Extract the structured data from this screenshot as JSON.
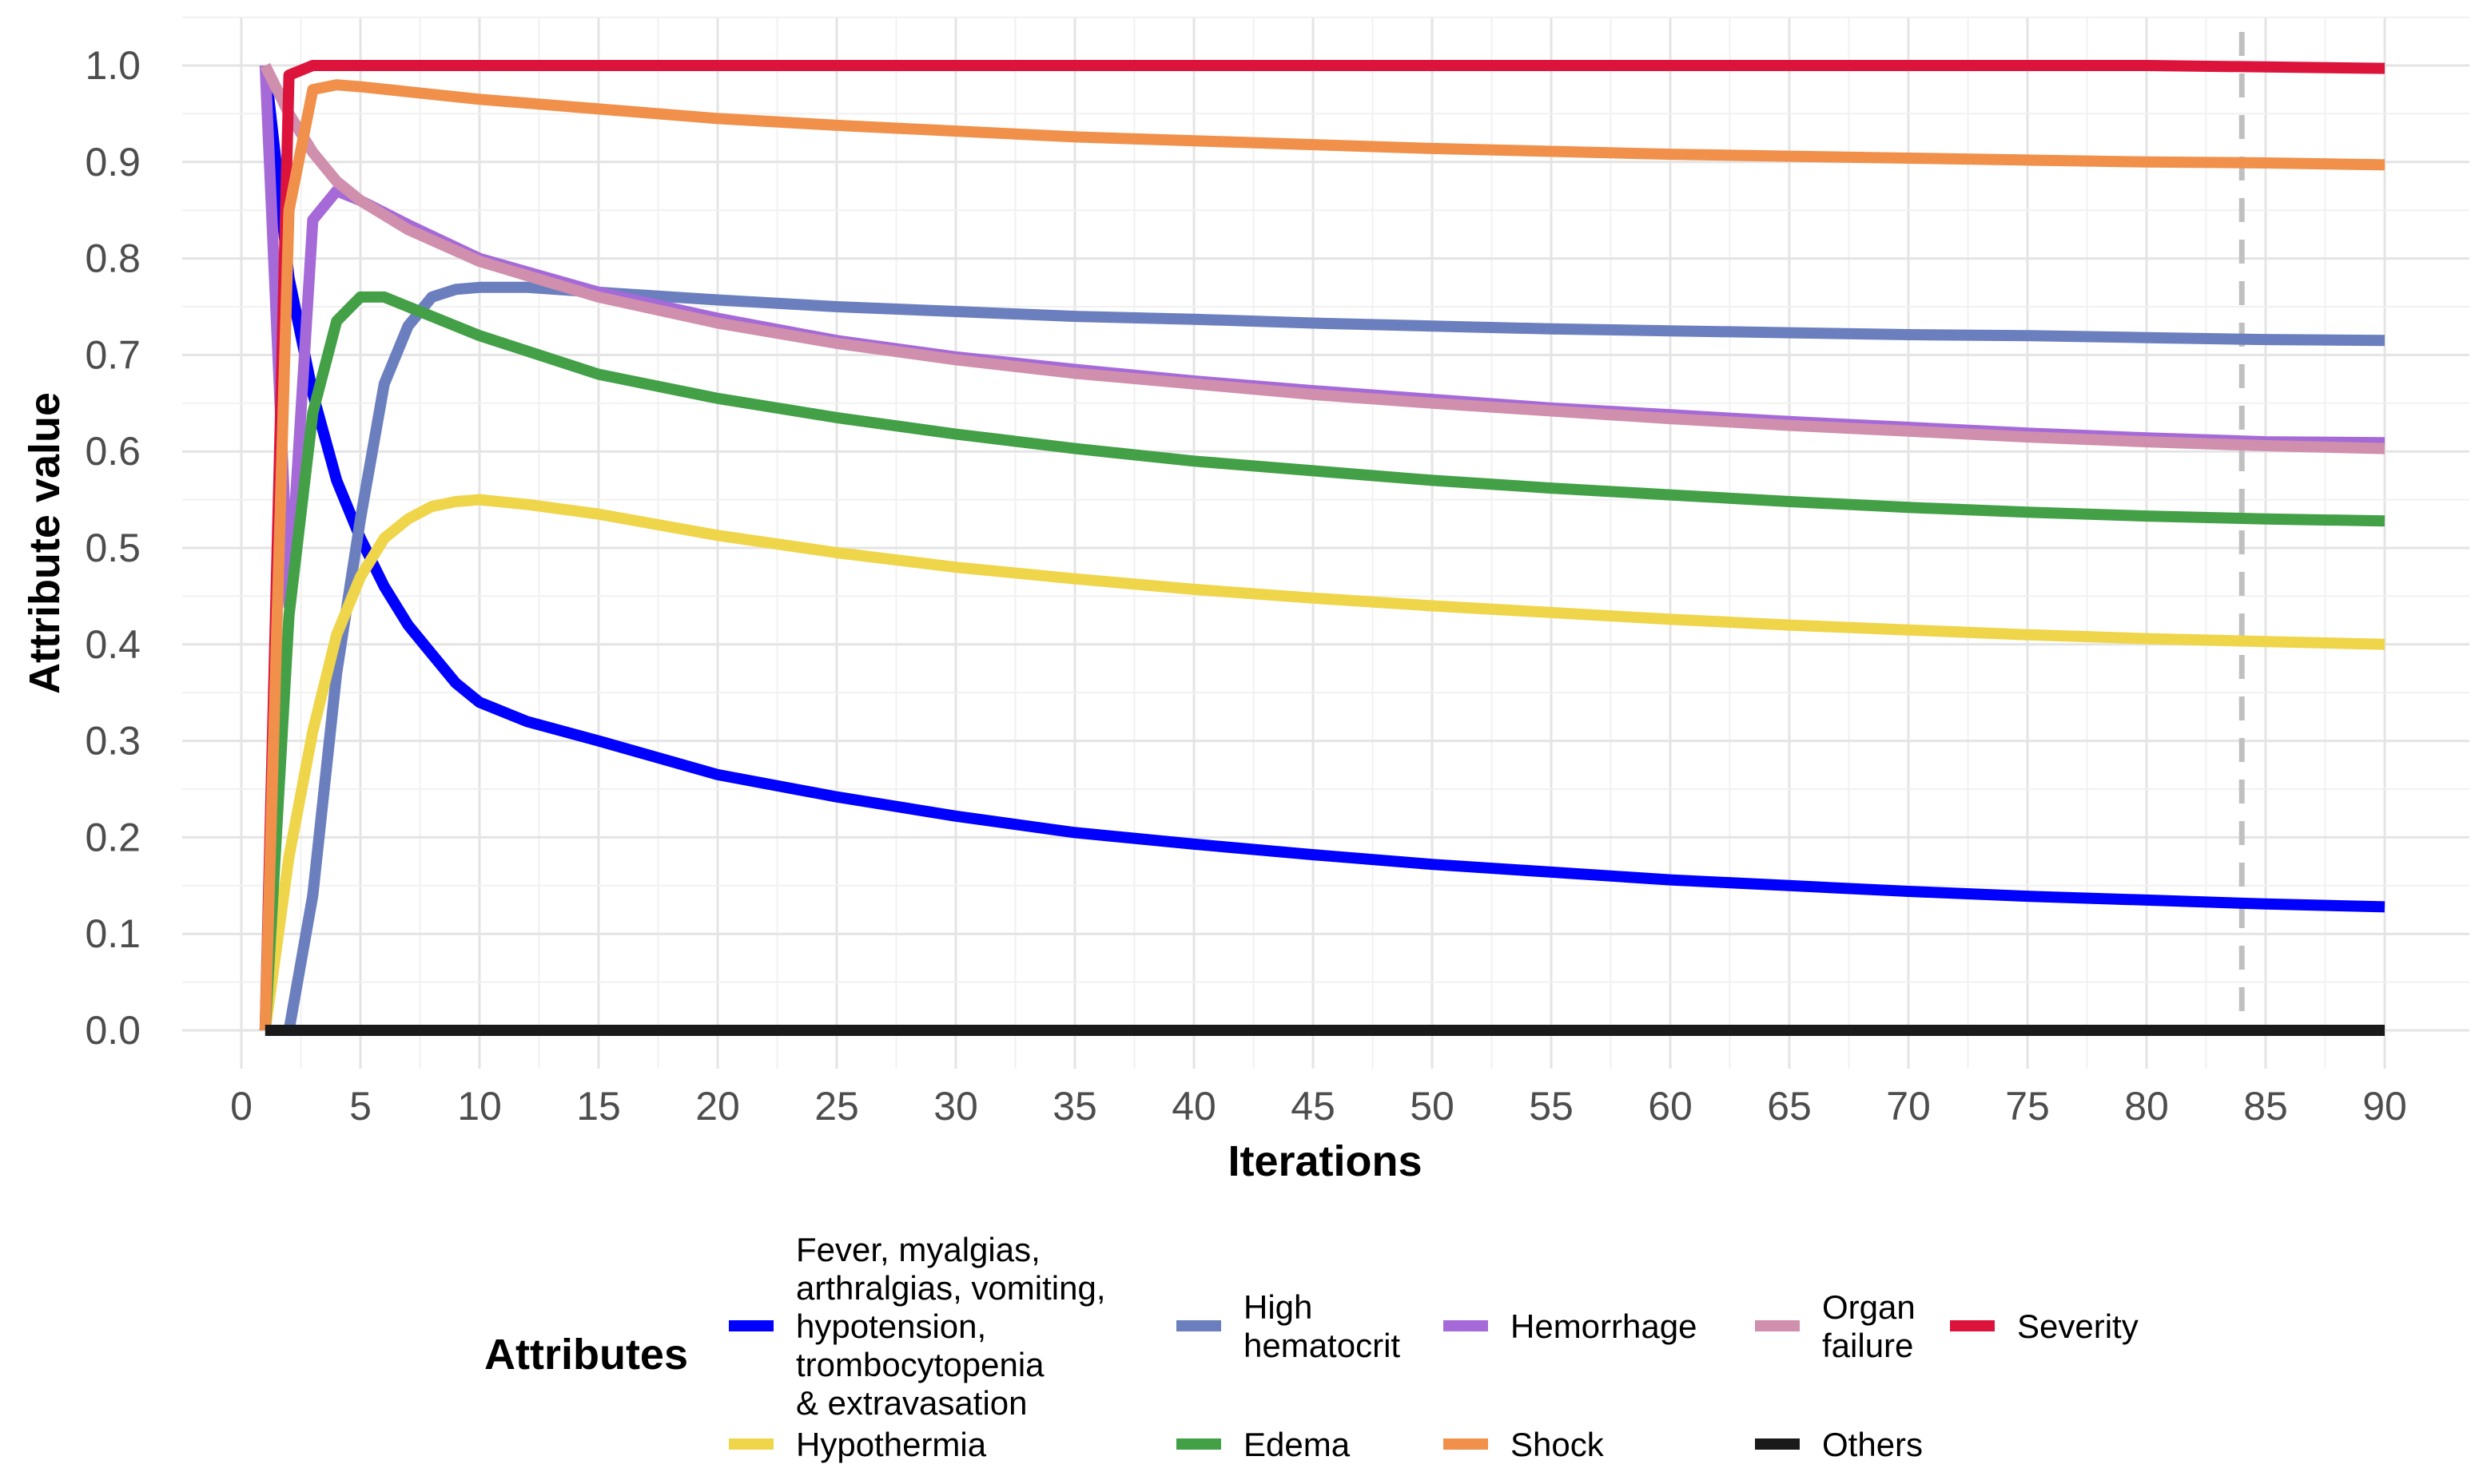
{
  "chart_data": {
    "type": "line",
    "title": "",
    "xlabel": "Iterations",
    "ylabel": "Attribute value",
    "xlim": [
      0,
      90
    ],
    "ylim": [
      0,
      1
    ],
    "x_ticks": [
      0,
      5,
      10,
      15,
      20,
      25,
      30,
      35,
      40,
      45,
      50,
      55,
      60,
      65,
      70,
      75,
      80,
      85,
      90
    ],
    "y_ticks": [
      "0.0",
      "0.1",
      "0.2",
      "0.3",
      "0.4",
      "0.5",
      "0.6",
      "0.7",
      "0.8",
      "0.9",
      "1.0"
    ],
    "grid": true,
    "reference_line": {
      "axis": "x",
      "value": 84,
      "style": "dashed",
      "color": "#c0c0c0"
    },
    "legend": {
      "title": "Attributes",
      "placement": "bottom"
    },
    "series": [
      {
        "name": "Fever, myalgias, arthralgias, vomiting, hypotension, trombocytopenia & extravasation",
        "label_lines": [
          "Fever, myalgias,",
          "arthralgias, vomiting,",
          "hypotension,",
          "trombocytopenia",
          "& extravasation"
        ],
        "color": "#0000ff",
        "points": [
          [
            1,
            1.0
          ],
          [
            2,
            0.78
          ],
          [
            3,
            0.66
          ],
          [
            4,
            0.57
          ],
          [
            5,
            0.51
          ],
          [
            6,
            0.46
          ],
          [
            7,
            0.42
          ],
          [
            8,
            0.39
          ],
          [
            9,
            0.36
          ],
          [
            10,
            0.34
          ],
          [
            12,
            0.32
          ],
          [
            15,
            0.3
          ],
          [
            20,
            0.265
          ],
          [
            25,
            0.242
          ],
          [
            30,
            0.222
          ],
          [
            35,
            0.205
          ],
          [
            40,
            0.193
          ],
          [
            45,
            0.182
          ],
          [
            50,
            0.172
          ],
          [
            55,
            0.164
          ],
          [
            60,
            0.156
          ],
          [
            65,
            0.15
          ],
          [
            70,
            0.144
          ],
          [
            75,
            0.139
          ],
          [
            80,
            0.135
          ],
          [
            85,
            0.131
          ],
          [
            90,
            0.128
          ]
        ]
      },
      {
        "name": "High hematocrit",
        "label_lines": [
          "High",
          "hematocrit"
        ],
        "color": "#6b7fbe",
        "points": [
          [
            2,
            0.0
          ],
          [
            3,
            0.14
          ],
          [
            4,
            0.37
          ],
          [
            5,
            0.53
          ],
          [
            6,
            0.67
          ],
          [
            7,
            0.73
          ],
          [
            8,
            0.76
          ],
          [
            9,
            0.768
          ],
          [
            10,
            0.77
          ],
          [
            12,
            0.77
          ],
          [
            15,
            0.765
          ],
          [
            20,
            0.757
          ],
          [
            25,
            0.75
          ],
          [
            30,
            0.745
          ],
          [
            35,
            0.74
          ],
          [
            40,
            0.737
          ],
          [
            45,
            0.733
          ],
          [
            50,
            0.73
          ],
          [
            55,
            0.727
          ],
          [
            60,
            0.725
          ],
          [
            65,
            0.723
          ],
          [
            70,
            0.721
          ],
          [
            75,
            0.72
          ],
          [
            80,
            0.718
          ],
          [
            85,
            0.716
          ],
          [
            90,
            0.715
          ]
        ]
      },
      {
        "name": "Hemorrhage",
        "label_lines": [
          "Hemorrhage"
        ],
        "color": "#a56ad8",
        "points": [
          [
            1,
            1.0
          ],
          [
            2,
            0.44
          ],
          [
            3,
            0.84
          ],
          [
            4,
            0.87
          ],
          [
            5,
            0.86
          ],
          [
            7,
            0.835
          ],
          [
            10,
            0.8
          ],
          [
            15,
            0.765
          ],
          [
            20,
            0.738
          ],
          [
            25,
            0.715
          ],
          [
            30,
            0.698
          ],
          [
            35,
            0.685
          ],
          [
            40,
            0.673
          ],
          [
            45,
            0.663
          ],
          [
            50,
            0.654
          ],
          [
            55,
            0.645
          ],
          [
            60,
            0.638
          ],
          [
            65,
            0.631
          ],
          [
            70,
            0.625
          ],
          [
            75,
            0.619
          ],
          [
            80,
            0.614
          ],
          [
            85,
            0.61
          ],
          [
            90,
            0.609
          ]
        ]
      },
      {
        "name": "Organ failure",
        "label_lines": [
          "Organ",
          "failure"
        ],
        "color": "#d08fac",
        "points": [
          [
            1,
            1.0
          ],
          [
            2,
            0.95
          ],
          [
            3,
            0.91
          ],
          [
            4,
            0.88
          ],
          [
            5,
            0.86
          ],
          [
            7,
            0.83
          ],
          [
            10,
            0.797
          ],
          [
            15,
            0.76
          ],
          [
            20,
            0.733
          ],
          [
            25,
            0.712
          ],
          [
            30,
            0.695
          ],
          [
            35,
            0.681
          ],
          [
            40,
            0.67
          ],
          [
            45,
            0.659
          ],
          [
            50,
            0.65
          ],
          [
            55,
            0.642
          ],
          [
            60,
            0.634
          ],
          [
            65,
            0.627
          ],
          [
            70,
            0.621
          ],
          [
            75,
            0.615
          ],
          [
            80,
            0.61
          ],
          [
            85,
            0.606
          ],
          [
            90,
            0.603
          ]
        ]
      },
      {
        "name": "Severity",
        "label_lines": [
          "Severity"
        ],
        "color": "#dc143c",
        "points": [
          [
            1,
            0.0
          ],
          [
            2,
            0.99
          ],
          [
            3,
            1.0
          ],
          [
            10,
            1.0
          ],
          [
            20,
            1.0
          ],
          [
            30,
            1.0
          ],
          [
            40,
            1.0
          ],
          [
            50,
            1.0
          ],
          [
            60,
            1.0
          ],
          [
            70,
            1.0
          ],
          [
            80,
            1.0
          ],
          [
            90,
            0.997
          ]
        ]
      },
      {
        "name": "Hypothermia",
        "label_lines": [
          "Hypothermia"
        ],
        "color": "#efd54a",
        "points": [
          [
            1,
            0.0
          ],
          [
            2,
            0.18
          ],
          [
            3,
            0.31
          ],
          [
            4,
            0.41
          ],
          [
            5,
            0.47
          ],
          [
            6,
            0.51
          ],
          [
            7,
            0.53
          ],
          [
            8,
            0.543
          ],
          [
            9,
            0.548
          ],
          [
            10,
            0.55
          ],
          [
            12,
            0.545
          ],
          [
            15,
            0.535
          ],
          [
            20,
            0.513
          ],
          [
            25,
            0.495
          ],
          [
            30,
            0.48
          ],
          [
            35,
            0.468
          ],
          [
            40,
            0.457
          ],
          [
            45,
            0.448
          ],
          [
            50,
            0.44
          ],
          [
            55,
            0.433
          ],
          [
            60,
            0.426
          ],
          [
            65,
            0.42
          ],
          [
            70,
            0.415
          ],
          [
            75,
            0.41
          ],
          [
            80,
            0.406
          ],
          [
            85,
            0.403
          ],
          [
            90,
            0.4
          ]
        ]
      },
      {
        "name": "Edema",
        "label_lines": [
          "Edema"
        ],
        "color": "#43a047",
        "points": [
          [
            1,
            0.0
          ],
          [
            2,
            0.43
          ],
          [
            3,
            0.64
          ],
          [
            4,
            0.735
          ],
          [
            5,
            0.76
          ],
          [
            6,
            0.76
          ],
          [
            7,
            0.75
          ],
          [
            10,
            0.72
          ],
          [
            15,
            0.68
          ],
          [
            20,
            0.655
          ],
          [
            25,
            0.635
          ],
          [
            30,
            0.618
          ],
          [
            35,
            0.603
          ],
          [
            40,
            0.59
          ],
          [
            45,
            0.58
          ],
          [
            50,
            0.57
          ],
          [
            55,
            0.562
          ],
          [
            60,
            0.555
          ],
          [
            65,
            0.548
          ],
          [
            70,
            0.542
          ],
          [
            75,
            0.537
          ],
          [
            80,
            0.533
          ],
          [
            85,
            0.53
          ],
          [
            90,
            0.528
          ]
        ]
      },
      {
        "name": "Shock",
        "label_lines": [
          "Shock"
        ],
        "color": "#f0904a",
        "points": [
          [
            1,
            0.0
          ],
          [
            2,
            0.85
          ],
          [
            3,
            0.975
          ],
          [
            4,
            0.98
          ],
          [
            5,
            0.978
          ],
          [
            10,
            0.965
          ],
          [
            15,
            0.955
          ],
          [
            20,
            0.945
          ],
          [
            25,
            0.938
          ],
          [
            30,
            0.932
          ],
          [
            35,
            0.926
          ],
          [
            40,
            0.922
          ],
          [
            45,
            0.918
          ],
          [
            50,
            0.914
          ],
          [
            55,
            0.911
          ],
          [
            60,
            0.908
          ],
          [
            65,
            0.906
          ],
          [
            70,
            0.904
          ],
          [
            75,
            0.902
          ],
          [
            80,
            0.9
          ],
          [
            85,
            0.899
          ],
          [
            90,
            0.897
          ]
        ]
      },
      {
        "name": "Others",
        "label_lines": [
          "Others"
        ],
        "color": "#1a1a1a",
        "points": [
          [
            1,
            0.0
          ],
          [
            90,
            0.0
          ]
        ]
      }
    ]
  }
}
